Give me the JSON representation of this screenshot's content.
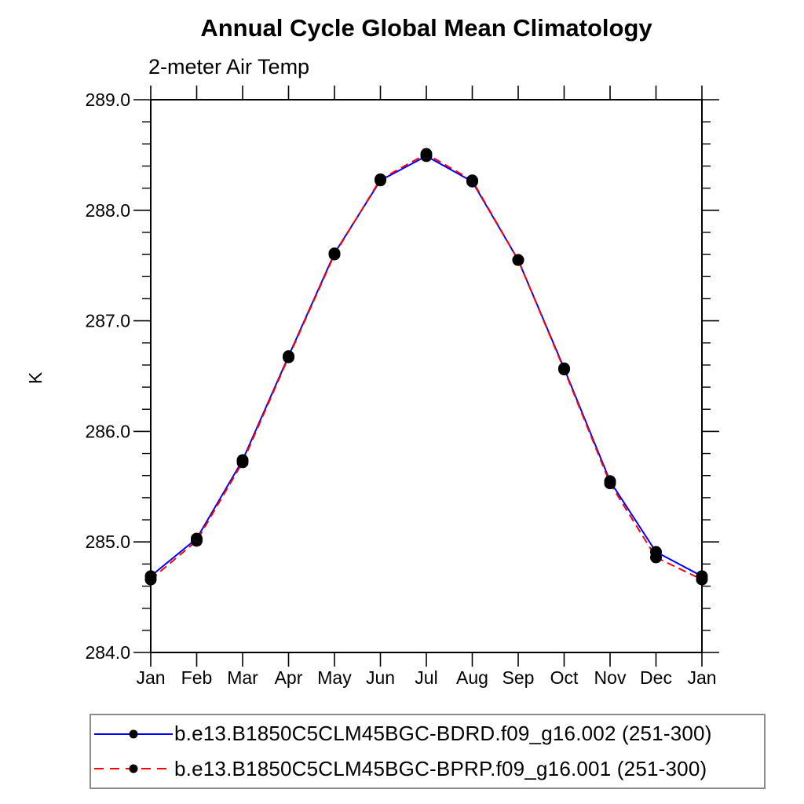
{
  "chart_data": {
    "type": "line",
    "title": "Annual Cycle Global Mean Climatology",
    "subtitle": "2-meter Air Temp",
    "ylabel": "K",
    "ylim": [
      284.0,
      289.0
    ],
    "ytick_major": 1.0,
    "ytick_minor": 0.2,
    "ytick_labels": [
      "284.0",
      "285.0",
      "286.0",
      "287.0",
      "288.0",
      "289.0"
    ],
    "categories": [
      "Jan",
      "Feb",
      "Mar",
      "Apr",
      "May",
      "Jun",
      "Jul",
      "Aug",
      "Sep",
      "Oct",
      "Nov",
      "Dec",
      "Jan"
    ],
    "grid": false,
    "legend_position": "bottom",
    "marker": "filled-circle",
    "marker_color": "#000000",
    "series": [
      {
        "label": "b.e13.B1850C5CLM45BGC-BDRD.f09_g16.002 (251-300)",
        "color": "#0000ff",
        "line_style": "solid",
        "values": [
          284.69,
          285.03,
          285.74,
          286.68,
          287.61,
          288.27,
          288.49,
          288.26,
          287.55,
          286.57,
          285.55,
          284.91,
          284.69
        ]
      },
      {
        "label": "b.e13.B1850C5CLM45BGC-BPRP.f09_g16.001 (251-300)",
        "color": "#ff0000",
        "line_style": "dashed",
        "values": [
          284.66,
          285.01,
          285.72,
          286.67,
          287.6,
          288.28,
          288.51,
          288.27,
          287.55,
          286.56,
          285.53,
          284.86,
          284.66
        ]
      }
    ]
  }
}
